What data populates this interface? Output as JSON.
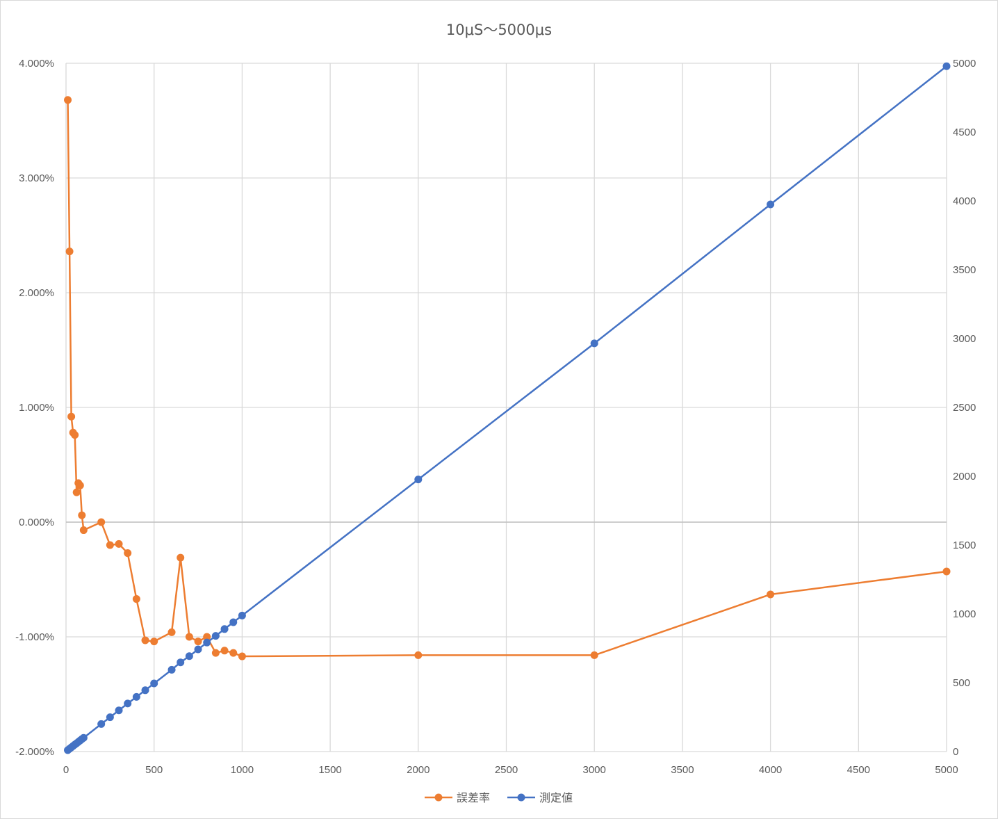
{
  "chart_data": {
    "type": "line",
    "title": "10μS～5000μs",
    "xlabel": "",
    "ylabel": "",
    "y2label": "",
    "xlim": [
      0,
      5000
    ],
    "ylim": [
      -0.02,
      0.04
    ],
    "y2lim": [
      0,
      5000
    ],
    "x_ticks": [
      "0",
      "500",
      "1000",
      "1500",
      "2000",
      "2500",
      "3000",
      "3500",
      "4000",
      "4500",
      "5000"
    ],
    "y_ticks": [
      "4.000%",
      "3.000%",
      "2.000%",
      "1.000%",
      "0.000%",
      "-1.000%",
      "-2.000%"
    ],
    "y2_ticks": [
      "5000",
      "4500",
      "4000",
      "3500",
      "3000",
      "2500",
      "2000",
      "1500",
      "1000",
      "500",
      "0"
    ],
    "grid": true,
    "legend_position": "bottom",
    "series": [
      {
        "name": "誤差率",
        "axis": "left",
        "color": "#ED7D31",
        "x": [
          10,
          20,
          30,
          40,
          50,
          60,
          70,
          80,
          90,
          100,
          200,
          250,
          300,
          350,
          400,
          450,
          500,
          600,
          650,
          700,
          750,
          800,
          850,
          900,
          950,
          1000,
          2000,
          3000,
          4000,
          5000
        ],
        "y": [
          0.0368,
          0.0236,
          0.0092,
          0.0078,
          0.0076,
          0.0026,
          0.0034,
          0.0032,
          0.0006,
          -0.0007,
          0.0,
          -0.002,
          -0.0019,
          -0.0027,
          -0.0067,
          -0.0103,
          -0.0104,
          -0.0096,
          -0.0031,
          -0.01,
          -0.0104,
          -0.01,
          -0.0114,
          -0.0112,
          -0.0114,
          -0.0117,
          -0.0116,
          -0.0116,
          -0.0063,
          -0.0043
        ]
      },
      {
        "name": "測定値",
        "axis": "right",
        "color": "#4472C4",
        "x": [
          10,
          20,
          30,
          40,
          50,
          60,
          70,
          80,
          90,
          100,
          200,
          250,
          300,
          350,
          400,
          450,
          500,
          600,
          650,
          700,
          750,
          800,
          850,
          900,
          950,
          1000,
          2000,
          3000,
          4000,
          5000
        ],
        "y": [
          10.4,
          20.5,
          30.3,
          40.3,
          50.4,
          60.2,
          70.2,
          80.3,
          90.1,
          99.9,
          200,
          249.5,
          299.4,
          349.1,
          397.3,
          445.4,
          494.8,
          594.2,
          648,
          693,
          742.2,
          792,
          840.3,
          889.9,
          939.2,
          988.3,
          1976.8,
          2965.2,
          3974.8,
          4978.5
        ]
      }
    ]
  }
}
